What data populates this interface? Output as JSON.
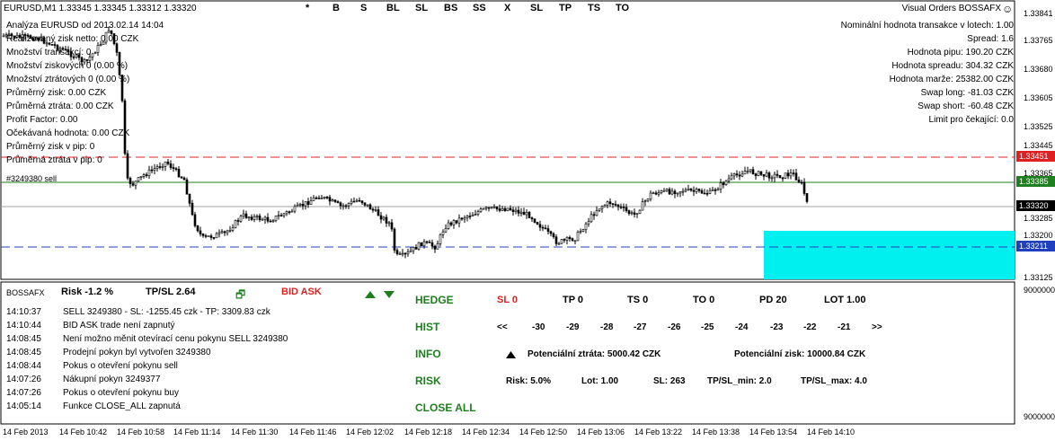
{
  "chart": {
    "title": "EURUSD,M1  1.33345 1.33345 1.33312 1.33320",
    "analysis": "Analýza  EURUSD od  2013.02.14 14:04",
    "stats": [
      "Realizovaný zisk netto: 0.00 CZK",
      "Množství transakcí: 0",
      "Množství ziskových 0  (0.00 %)",
      "Množství ztrátových 0  (0.00 %)",
      "Průměrný zisk: 0.00 CZK",
      "Průměrná ztráta: 0.00 CZK",
      "Profit Factor:  0.00",
      "Očekávaná hodnota:  0.00 CZK",
      "Průměrný zisk v pip: 0",
      "Průměrná ztráta v pip: 0"
    ],
    "order_label": "#3249380 sell",
    "panel_buttons": [
      "*",
      "B",
      "S",
      "BL",
      "SL",
      "BS",
      "SS",
      "X",
      "SL",
      "TP",
      "TS",
      "TO"
    ],
    "ea_name": "Visual Orders BOSSAFX",
    "ea_icon": "smiley-icon",
    "right_info": [
      "Nominální hodnota transakce v lotech:  1.00",
      "Spread:  1.6",
      "Hodnota pipu:  190.20  CZK",
      "Hodnota spreadu:  304.32  CZK",
      "Hodnota marže:  25382.00  CZK",
      "Swap long:  -81.03  CZK",
      "Swap short:  -60.48 CZK",
      "Limit pro čekající:  0.0"
    ],
    "y_axis": [
      "1.33841",
      "1.33765",
      "1.33680",
      "1.33605",
      "1.33525",
      "1.33445",
      "1.33365",
      "1.33285",
      "1.33200",
      "1.33125"
    ],
    "price_tags": {
      "sl": {
        "label": "1.33451",
        "color": "#e02020"
      },
      "entry": {
        "label": "1.33385",
        "color": "#1e7f1e"
      },
      "bid": {
        "label": "1.33320",
        "color": "#000000"
      },
      "tp": {
        "label": "1.33211",
        "color": "#1f3fbf"
      }
    },
    "target_zone_color": "#00f0f0"
  },
  "indicator": {
    "y_top": "9000000",
    "y_bottom": "9000000",
    "name": "BOSSAFX",
    "risk": "Risk  -1.2 %",
    "tpsl": "TP/SL  2.64",
    "bid_ask": "BID ASK",
    "bid_ask_color": "#e02020",
    "log": [
      {
        "time": "14:10:37",
        "msg": "SELL  3249380 - SL: -1255.45 czk - TP: 3309.83 czk"
      },
      {
        "time": "14:10:44",
        "msg": "BID ASK trade  není  zapnutý"
      },
      {
        "time": "14:08:45",
        "msg": "Není možno měnit otevírací cenu pokynu SELL 3249380"
      },
      {
        "time": "14:08:45",
        "msg": "Prodejní pokyn byl vytvořen 3249380"
      },
      {
        "time": "14:08:44",
        "msg": "Pokus o otevření pokynu sell"
      },
      {
        "time": "14:07:26",
        "msg": "Nákupní pokyn  3249377"
      },
      {
        "time": "14:07:26",
        "msg": "Pokus o otevření pokynu buy"
      },
      {
        "time": "14:05:14",
        "msg": "Funkce CLOSE_ALL zapnutá"
      }
    ],
    "buttons": {
      "hedge": "HEDGE",
      "hist": "HIST",
      "info": "INFO",
      "risk": "RISK",
      "close_all": "CLOSE ALL"
    },
    "settings": {
      "sl": "SL  0",
      "tp": "TP  0",
      "ts": "TS  0",
      "to": "TO  0",
      "pd": "PD  20",
      "lot": "LOT  1.00"
    },
    "hist_nav": [
      "<<",
      "-30",
      "-29",
      "-28",
      "-27",
      "-26",
      "-25",
      "-24",
      "-23",
      "-22",
      "-21",
      ">>"
    ],
    "info_line": {
      "loss": "Potenciální ztráta: 5000.42 CZK",
      "gain": "Potenciální zisk: 10000.84 CZK"
    },
    "risk_line": {
      "risk": "Risk: 5.0%",
      "lot": "Lot: 1.00",
      "sl": "SL: 263",
      "tpsl_min": "TP/SL_min: 2.0",
      "tpsl_max": "TP/SL_max: 4.0"
    }
  },
  "x_axis": [
    "14 Feb 2013",
    "14 Feb 10:42",
    "14 Feb 10:58",
    "14 Feb 11:14",
    "14 Feb 11:30",
    "14 Feb 11:46",
    "14 Feb 12:02",
    "14 Feb 12:18",
    "14 Feb 12:34",
    "14 Feb 12:50",
    "14 Feb 13:06",
    "14 Feb 13:22",
    "14 Feb 13:38",
    "14 Feb 13:54",
    "14 Feb 14:10"
  ]
}
